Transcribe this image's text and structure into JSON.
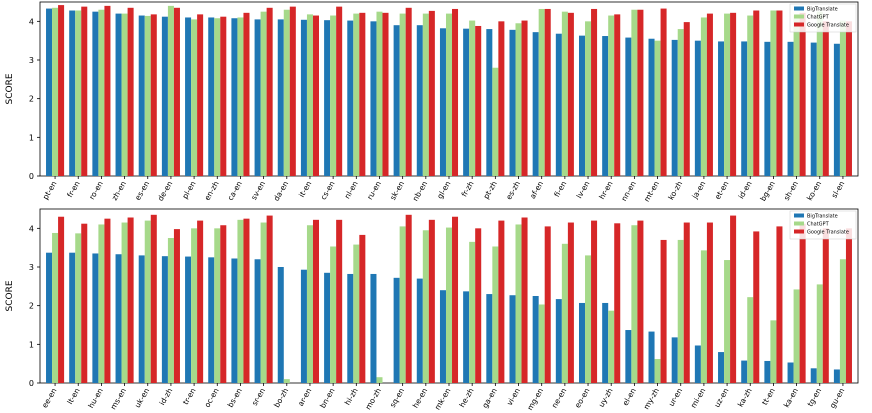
{
  "colors": {
    "BigTranslate": "#1f77b4",
    "ChatGPT": "#a6d98a",
    "Google Translate": "#d62728"
  },
  "chart_data": [
    {
      "type": "bar",
      "ylabel": "SCORE",
      "xlabel": "",
      "ylim": [
        0,
        4.5
      ],
      "yticks": [
        0,
        1,
        2,
        3,
        4
      ],
      "legend_placement": "top-right",
      "categories": [
        "pt-en",
        "fr-en",
        "ro-en",
        "zh-en",
        "es-en",
        "de-en",
        "pl-en",
        "en-zh",
        "ca-en",
        "sv-en",
        "da-en",
        "it-en",
        "cs-en",
        "nl-en",
        "ru-en",
        "sk-en",
        "nb-en",
        "gl-en",
        "fr-zh",
        "pt-zh",
        "es-zh",
        "af-en",
        "fi-en",
        "lv-en",
        "hr-en",
        "nn-en",
        "mt-en",
        "ko-zh",
        "ja-en",
        "et-en",
        "id-en",
        "bg-en",
        "sh-en",
        "ko-en",
        "sl-en"
      ],
      "series": [
        {
          "name": "BigTranslate",
          "values": [
            4.33,
            4.28,
            4.25,
            4.2,
            4.15,
            4.12,
            4.1,
            4.1,
            4.08,
            4.05,
            4.05,
            4.04,
            4.03,
            4.02,
            4.0,
            3.9,
            3.9,
            3.82,
            3.81,
            3.8,
            3.78,
            3.72,
            3.68,
            3.63,
            3.62,
            3.58,
            3.55,
            3.52,
            3.5,
            3.48,
            3.48,
            3.47,
            3.47,
            3.45,
            3.42
          ]
        },
        {
          "name": "ChatGPT",
          "values": [
            4.35,
            4.28,
            4.3,
            4.2,
            4.14,
            4.4,
            4.05,
            4.08,
            4.1,
            4.25,
            4.3,
            4.18,
            4.15,
            4.2,
            4.25,
            4.2,
            4.2,
            4.2,
            4.02,
            2.8,
            3.95,
            4.32,
            4.25,
            4.0,
            4.15,
            4.3,
            3.5,
            3.8,
            4.1,
            4.2,
            4.15,
            4.28,
            4.15,
            4.25,
            4.02
          ]
        },
        {
          "name": "Google Translate",
          "values": [
            4.42,
            4.38,
            4.4,
            4.35,
            4.18,
            4.35,
            4.18,
            4.12,
            4.22,
            4.35,
            4.38,
            4.15,
            4.38,
            4.22,
            4.22,
            4.35,
            4.27,
            4.32,
            3.88,
            4.0,
            4.02,
            4.32,
            4.22,
            4.32,
            4.18,
            4.3,
            4.33,
            3.98,
            4.2,
            4.22,
            4.28,
            4.28,
            4.22,
            4.0,
            4.0
          ]
        }
      ]
    },
    {
      "type": "bar",
      "ylabel": "SCORE",
      "xlabel": "",
      "ylim": [
        0,
        4.5
      ],
      "yticks": [
        0,
        1,
        2,
        3,
        4
      ],
      "legend_placement": "top-right",
      "categories": [
        "ee-en",
        "lt-en",
        "hu-en",
        "ms-en",
        "uk-en",
        "id-zh",
        "tr-en",
        "oc-en",
        "bs-en",
        "sr-en",
        "bo-zh",
        "ar-en",
        "bn-en",
        "hi-zh",
        "mo-zh",
        "sq-en",
        "he-en",
        "mk-en",
        "he-zh",
        "ga-en",
        "vi-en",
        "mg-en",
        "ne-en",
        "eo-en",
        "uy-zh",
        "el-en",
        "my-zh",
        "ur-en",
        "mi-en",
        "uz-en",
        "ka-zh",
        "tt-en",
        "ka-en",
        "tg-en",
        "gu-en"
      ],
      "series": [
        {
          "name": "BigTranslate",
          "values": [
            3.37,
            3.37,
            3.35,
            3.33,
            3.3,
            3.28,
            3.27,
            3.25,
            3.22,
            3.2,
            3.0,
            2.93,
            2.85,
            2.82,
            2.82,
            2.72,
            2.7,
            2.4,
            2.37,
            2.3,
            2.27,
            2.25,
            2.17,
            2.07,
            2.07,
            1.37,
            1.33,
            1.18,
            0.97,
            0.8,
            0.58,
            0.57,
            0.53,
            0.38,
            0.35
          ]
        },
        {
          "name": "ChatGPT",
          "values": [
            3.88,
            3.87,
            4.1,
            4.15,
            4.2,
            3.75,
            4.0,
            4.0,
            4.22,
            4.15,
            0.1,
            4.08,
            3.53,
            3.58,
            0.15,
            4.05,
            3.95,
            4.02,
            3.65,
            3.53,
            4.1,
            2.03,
            3.6,
            3.3,
            1.87,
            4.08,
            0.62,
            3.7,
            3.43,
            3.18,
            2.22,
            1.62,
            2.42,
            2.55,
            3.2
          ]
        },
        {
          "name": "Google Translate",
          "values": [
            4.3,
            4.12,
            4.25,
            4.28,
            4.35,
            3.98,
            4.2,
            4.08,
            4.25,
            4.33,
            null,
            4.22,
            4.22,
            3.83,
            null,
            4.35,
            4.22,
            4.3,
            4.0,
            4.2,
            4.28,
            4.05,
            4.15,
            4.2,
            4.13,
            4.2,
            3.7,
            4.15,
            4.15,
            4.33,
            3.92,
            4.05,
            4.12,
            4.0,
            4.0
          ]
        }
      ]
    }
  ]
}
